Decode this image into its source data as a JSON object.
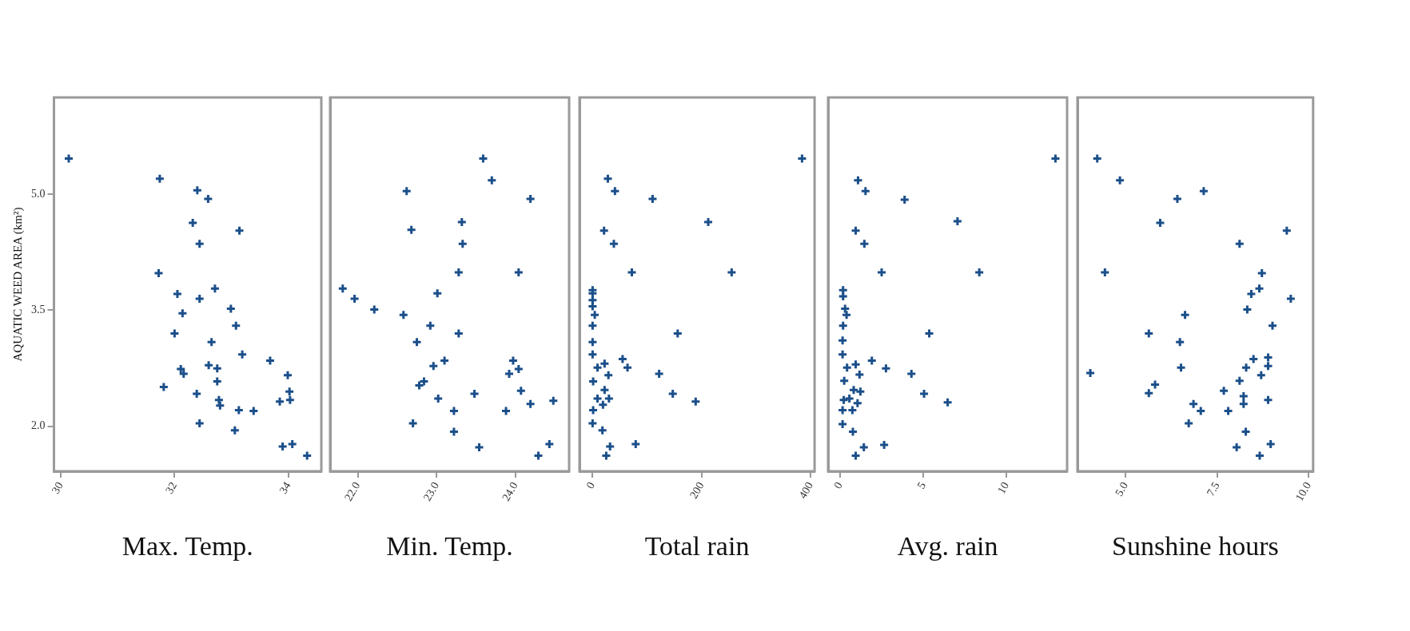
{
  "chart_data": [
    {
      "type": "scatter",
      "xlabel": "Max. Temp.",
      "ylabel": "AQUATIC WEED AREA (km²)",
      "color": "#1b4f8a",
      "marker": "cross",
      "grid": false,
      "legend": false,
      "xlim": [
        29.88,
        34.58
      ],
      "xticks": [
        30,
        32,
        34
      ],
      "ylim": [
        1.42,
        6.25
      ],
      "yticks": [
        {
          "value": 2,
          "label": "2.0"
        },
        {
          "value": 3.5,
          "label": "3.5"
        },
        {
          "value": 5,
          "label": "5.0"
        }
      ],
      "x": [
        30.14,
        31.74,
        32.4,
        32.59,
        32.32,
        33.14,
        32.44,
        31.72,
        32.05,
        32.71,
        32.44,
        32.14,
        32.99,
        33.08,
        32.0,
        32.65,
        33.19,
        33.68,
        32.11,
        32.16,
        32.6,
        32.75,
        32.75,
        33.99,
        31.81,
        34.02,
        34.03,
        32.39,
        32.78,
        32.8,
        33.13,
        33.39,
        33.85,
        32.44,
        33.06,
        33.9,
        34.07,
        34.33
      ],
      "values": [
        5.46,
        5.2,
        5.05,
        4.94,
        4.63,
        4.53,
        4.36,
        3.98,
        3.71,
        3.78,
        3.65,
        3.46,
        3.52,
        3.3,
        3.2,
        3.09,
        2.93,
        2.85,
        2.74,
        2.68,
        2.79,
        2.75,
        2.58,
        2.66,
        2.51,
        2.45,
        2.34,
        2.42,
        2.34,
        2.27,
        2.21,
        2.2,
        2.32,
        2.04,
        1.95,
        1.74,
        1.77,
        1.62
      ]
    },
    {
      "type": "scatter",
      "xlabel": "Min. Temp.",
      "color": "#1b4f8a",
      "marker": "cross",
      "grid": false,
      "legend": false,
      "tick_labels": "x",
      "xlim": [
        21.65,
        24.68
      ],
      "xticks": [
        {
          "value": 22,
          "label": "22.0"
        },
        {
          "value": 23,
          "label": "23.0"
        },
        {
          "value": 24,
          "label": "24.0"
        }
      ],
      "ylim": [
        1.42,
        6.25
      ],
      "x": [
        23.59,
        23.7,
        24.19,
        22.62,
        22.68,
        23.32,
        23.33,
        23.28,
        24.04,
        21.81,
        21.96,
        22.21,
        22.58,
        23.01,
        22.92,
        23.28,
        22.75,
        22.96,
        23.1,
        23.97,
        23.92,
        24.04,
        24.07,
        22.84,
        22.78,
        23.02,
        23.48,
        24.19,
        24.48,
        23.22,
        23.88,
        22.7,
        23.22,
        23.54,
        24.43,
        24.29
      ],
      "values": [
        5.46,
        5.18,
        4.94,
        5.04,
        4.54,
        4.64,
        4.36,
        3.99,
        3.99,
        3.78,
        3.65,
        3.51,
        3.44,
        3.72,
        3.3,
        3.2,
        3.09,
        2.78,
        2.85,
        2.85,
        2.68,
        2.74,
        2.46,
        2.58,
        2.53,
        2.36,
        2.42,
        2.29,
        2.33,
        2.2,
        2.2,
        2.04,
        1.93,
        1.73,
        1.77,
        1.62
      ]
    },
    {
      "type": "scatter",
      "xlabel": "Total rain",
      "color": "#1b4f8a",
      "marker": "cross",
      "grid": false,
      "legend": false,
      "tick_labels": "x",
      "xlim": [
        -24,
        407
      ],
      "xticks": [
        0,
        200,
        400
      ],
      "ylim": [
        1.42,
        6.25
      ],
      "x": [
        384,
        28,
        41,
        110,
        212,
        21,
        39,
        72,
        255,
        0,
        0,
        0,
        0,
        4,
        0,
        0,
        0,
        156,
        55,
        64,
        9,
        22,
        29,
        122,
        1,
        22,
        9,
        30,
        19,
        1,
        147,
        189,
        0,
        18,
        79,
        32,
        25
      ],
      "values": [
        5.46,
        5.2,
        5.04,
        4.94,
        4.64,
        4.53,
        4.36,
        3.99,
        3.99,
        3.76,
        3.72,
        3.63,
        3.55,
        3.44,
        3.3,
        3.09,
        2.93,
        3.2,
        2.87,
        2.76,
        2.76,
        2.81,
        2.66,
        2.68,
        2.58,
        2.47,
        2.36,
        2.36,
        2.28,
        2.21,
        2.42,
        2.32,
        2.04,
        1.95,
        1.77,
        1.74,
        1.62
      ]
    },
    {
      "type": "scatter",
      "xlabel": "Avg. rain",
      "color": "#1b4f8a",
      "marker": "cross",
      "grid": false,
      "legend": false,
      "tick_labels": "x",
      "xlim": [
        -0.73,
        13.64
      ],
      "xticks": [
        0,
        5,
        10
      ],
      "ylim": [
        1.42,
        6.25
      ],
      "x": [
        12.94,
        1.07,
        1.52,
        3.87,
        7.05,
        0.93,
        1.45,
        2.49,
        8.36,
        0.17,
        0.17,
        0.29,
        0.38,
        0.17,
        0.14,
        0.14,
        5.35,
        1.9,
        2.75,
        4.28,
        0.41,
        0.93,
        1.16,
        0.24,
        0.81,
        1.21,
        0.21,
        0.55,
        1.04,
        0.14,
        0.73,
        5.04,
        6.46,
        0.14,
        0.76,
        2.64,
        1.42,
        0.93
      ],
      "values": [
        5.46,
        5.18,
        5.04,
        4.93,
        4.65,
        4.53,
        4.36,
        3.99,
        3.99,
        3.76,
        3.68,
        3.52,
        3.44,
        3.3,
        3.11,
        2.93,
        3.2,
        2.85,
        2.75,
        2.68,
        2.76,
        2.8,
        2.67,
        2.59,
        2.47,
        2.45,
        2.34,
        2.36,
        2.3,
        2.21,
        2.21,
        2.42,
        2.31,
        2.03,
        1.93,
        1.76,
        1.73,
        1.62
      ]
    },
    {
      "type": "scatter",
      "xlabel": "Sunshine hours",
      "color": "#1b4f8a",
      "marker": "cross",
      "grid": false,
      "legend": false,
      "tick_labels": "x",
      "xlim": [
        3.68,
        10.12
      ],
      "xticks": [
        {
          "value": 5,
          "label": "5.0"
        },
        {
          "value": 7.5,
          "label": "7.5"
        },
        {
          "value": 10,
          "label": "10.0"
        }
      ],
      "ylim": [
        1.42,
        6.25
      ],
      "x": [
        4.22,
        4.84,
        7.13,
        6.41,
        5.94,
        9.4,
        8.11,
        4.43,
        8.72,
        8.65,
        8.43,
        9.51,
        8.32,
        6.62,
        9.01,
        5.63,
        6.48,
        6.51,
        4.03,
        8.49,
        8.89,
        8.89,
        8.29,
        8.7,
        8.11,
        5.8,
        5.63,
        7.68,
        8.22,
        8.22,
        8.89,
        6.85,
        7.05,
        7.8,
        6.72,
        8.28,
        8.03,
        8.96,
        8.66
      ],
      "values": [
        5.46,
        5.18,
        5.04,
        4.94,
        4.63,
        4.53,
        4.36,
        3.99,
        3.98,
        3.78,
        3.71,
        3.65,
        3.51,
        3.44,
        3.3,
        3.2,
        3.09,
        2.76,
        2.69,
        2.87,
        2.89,
        2.78,
        2.76,
        2.66,
        2.59,
        2.54,
        2.43,
        2.46,
        2.39,
        2.29,
        2.34,
        2.29,
        2.2,
        2.2,
        2.04,
        1.93,
        1.73,
        1.77,
        1.62
      ]
    }
  ]
}
